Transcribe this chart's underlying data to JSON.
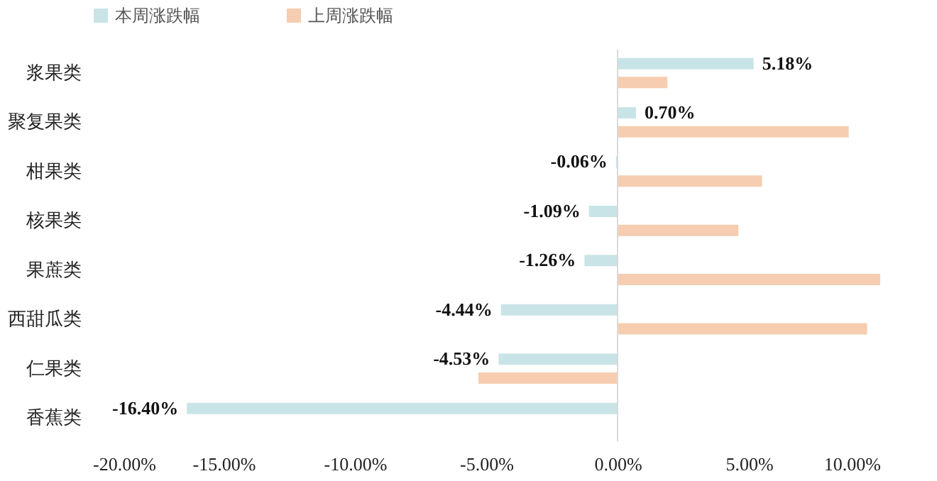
{
  "chart_data": {
    "type": "bar",
    "orientation": "horizontal",
    "categories": [
      "浆果类",
      "聚复果类",
      "柑果类",
      "核果类",
      "果蔗类",
      "西甜瓜类",
      "仁果类",
      "香蕉类"
    ],
    "series": [
      {
        "name": "本周涨跌幅",
        "color": "#c9e4e6",
        "values": [
          5.18,
          0.7,
          -0.06,
          -1.09,
          -1.26,
          -4.44,
          -4.53,
          -16.4
        ],
        "value_labels": [
          "5.18%",
          "0.70%",
          "-0.06%",
          "-1.09%",
          "-1.26%",
          "-4.44%",
          "-4.53%",
          "-16.40%"
        ]
      },
      {
        "name": "上周涨跌幅",
        "color": "#f6cdb0",
        "values": [
          1.9,
          8.8,
          5.5,
          4.6,
          10.0,
          9.5,
          -5.3,
          0
        ]
      }
    ],
    "xlim": [
      -20,
      10
    ],
    "xticks": [
      {
        "value": -20,
        "label": "-20.00%"
      },
      {
        "value": -15,
        "label": "-15.00%"
      },
      {
        "value": -10,
        "label": "-10.00%"
      },
      {
        "value": -5,
        "label": "-5.00%"
      },
      {
        "value": 0,
        "label": "0.00%"
      },
      {
        "value": 5,
        "label": "5.00%"
      },
      {
        "value": 10,
        "label": "10.00%"
      }
    ],
    "ref_lines": [
      {
        "axis": "x",
        "value": 0,
        "color": "#d9d9d9"
      }
    ],
    "legend": "top",
    "grid": false
  }
}
